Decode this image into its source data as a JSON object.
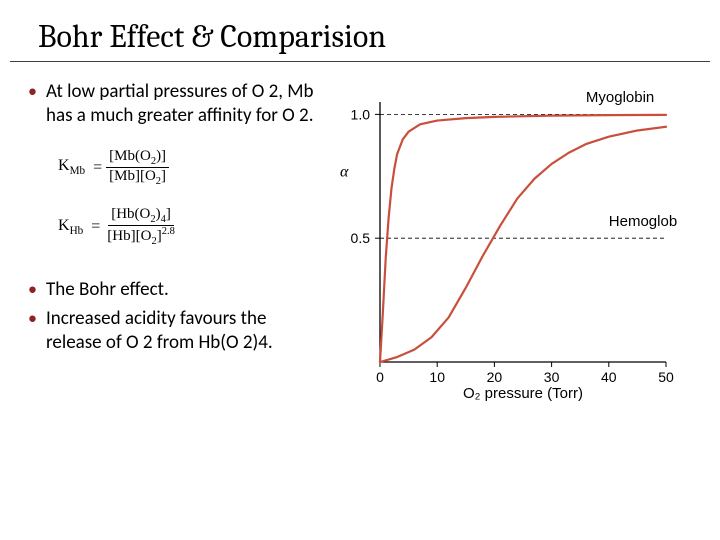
{
  "title": "Bohr Effect & Comparision",
  "bullets": {
    "b1": "At low partial pressures of O 2, Mb has a much greater affinity for O 2.",
    "b2": "The Bohr effect.",
    "b3": "Increased acidity favours the release of O 2 from Hb(O 2)4."
  },
  "equations": {
    "kmb": {
      "lhs": "K",
      "lhs_sub": "Mb",
      "num_pre": "[Mb(O",
      "num_sub": "2",
      "num_post": ")]",
      "den": "[Mb][O",
      "den_sub": "2",
      "den_post": "]"
    },
    "khb": {
      "lhs": "K",
      "lhs_sub": "Hb",
      "num_pre": "[Hb(O",
      "num_sub": "2",
      "num_post": ")",
      "num_sub2": "4",
      "num_close": "]",
      "den": "[Hb][O",
      "den_sub": "2",
      "den_post": "]",
      "den_exp": "2.8"
    }
  },
  "chart": {
    "type": "line",
    "xlabel": "O₂ pressure (Torr)",
    "ylabel": "α",
    "xlim": [
      0,
      50
    ],
    "ylim": [
      0,
      1.05
    ],
    "xticks": [
      0,
      10,
      20,
      30,
      40,
      50
    ],
    "yticks": [
      0.5,
      1.0
    ],
    "ytick_labels": [
      "0.5",
      "1.0"
    ],
    "background_color": "#ffffff",
    "axis_color": "#000000",
    "curve_color": "#c94f3c",
    "curve_width": 2.2,
    "label_fontsize": 15,
    "tick_fontsize": 14,
    "series": [
      {
        "name": "Myoglobin",
        "label_x": 36,
        "label_y": 1.05,
        "points": [
          [
            0,
            0
          ],
          [
            0.5,
            0.2
          ],
          [
            1,
            0.42
          ],
          [
            1.5,
            0.58
          ],
          [
            2,
            0.7
          ],
          [
            2.5,
            0.78
          ],
          [
            3,
            0.84
          ],
          [
            4,
            0.9
          ],
          [
            5,
            0.93
          ],
          [
            7,
            0.96
          ],
          [
            10,
            0.975
          ],
          [
            15,
            0.985
          ],
          [
            20,
            0.99
          ],
          [
            30,
            0.995
          ],
          [
            40,
            0.997
          ],
          [
            50,
            0.998
          ]
        ]
      },
      {
        "name": "Hemoglobin",
        "label_x": 40,
        "label_y": 0.55,
        "points": [
          [
            0,
            0
          ],
          [
            3,
            0.02
          ],
          [
            6,
            0.05
          ],
          [
            9,
            0.1
          ],
          [
            12,
            0.18
          ],
          [
            15,
            0.3
          ],
          [
            18,
            0.43
          ],
          [
            21,
            0.55
          ],
          [
            24,
            0.66
          ],
          [
            27,
            0.74
          ],
          [
            30,
            0.8
          ],
          [
            33,
            0.845
          ],
          [
            36,
            0.88
          ],
          [
            40,
            0.91
          ],
          [
            45,
            0.935
          ],
          [
            50,
            0.95
          ]
        ]
      }
    ]
  }
}
